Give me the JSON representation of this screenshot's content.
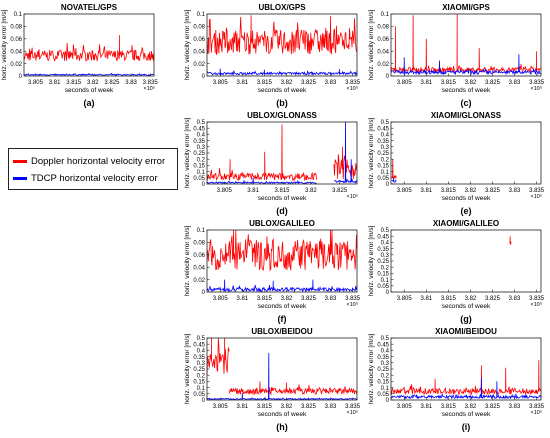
{
  "colors": {
    "doppler": "#ff0000",
    "tdcp": "#0000ff",
    "axis": "#222222",
    "grid": "#dddddd"
  },
  "legend": {
    "doppler_label": "Doppler horizontal velocity error",
    "tdcp_label": "TDCP horizontal velocity error"
  },
  "common": {
    "xlabel": "seconds of week",
    "ylabel": "horiz. velocity error [m/s]",
    "x_multiplier": "×10⁵"
  },
  "chart_data": [
    {
      "panel": "a",
      "type": "line",
      "title": "NOVATEL/GPS",
      "xlim": [
        3.802,
        3.836
      ],
      "ylim": [
        0,
        0.1
      ],
      "xticks": [
        3.805,
        3.81,
        3.815,
        3.82,
        3.825,
        3.83,
        3.835
      ],
      "yticks": [
        0,
        0.02,
        0.04,
        0.06,
        0.08,
        0.1
      ],
      "series": [
        {
          "name": "Doppler horizontal velocity error",
          "color": "red",
          "x_range": [
            3.802,
            3.836
          ],
          "mean": 0.033,
          "spread": 0.009,
          "peaks": [
            [
              3.827,
              0.066
            ]
          ]
        },
        {
          "name": "TDCP horizontal velocity error",
          "color": "blue",
          "x_range": [
            3.802,
            3.836
          ],
          "mean": 0.002,
          "spread": 0.001,
          "peaks": []
        }
      ]
    },
    {
      "panel": "b",
      "type": "line",
      "title": "UBLOX/GPS",
      "xlim": [
        3.802,
        3.836
      ],
      "ylim": [
        0,
        0.1
      ],
      "xticks": [
        3.805,
        3.81,
        3.815,
        3.82,
        3.825,
        3.83,
        3.835
      ],
      "yticks": [
        0,
        0.02,
        0.04,
        0.06,
        0.08,
        0.1
      ],
      "series": [
        {
          "name": "Doppler horizontal velocity error",
          "color": "red",
          "x_range": [
            3.802,
            3.836
          ],
          "mean": 0.055,
          "spread": 0.02,
          "peaks": [
            [
              3.812,
              0.098
            ],
            [
              3.83,
              0.097
            ]
          ]
        },
        {
          "name": "TDCP horizontal velocity error",
          "color": "blue",
          "x_range": [
            3.802,
            3.836
          ],
          "mean": 0.004,
          "spread": 0.002,
          "peaks": [
            [
              3.805,
              0.012
            ],
            [
              3.815,
              0.01
            ],
            [
              3.832,
              0.011
            ]
          ]
        }
      ]
    },
    {
      "panel": "c",
      "type": "line",
      "title": "XIAOMI/GPS",
      "xlim": [
        3.802,
        3.836
      ],
      "ylim": [
        0,
        0.1
      ],
      "xticks": [
        3.805,
        3.81,
        3.815,
        3.82,
        3.825,
        3.83,
        3.835
      ],
      "yticks": [
        0,
        0.02,
        0.04,
        0.06,
        0.08,
        0.1
      ],
      "series": [
        {
          "name": "Doppler horizontal velocity error",
          "color": "red",
          "x_range": [
            3.802,
            3.836
          ],
          "mean": 0.01,
          "spread": 0.004,
          "peaks": [
            [
              3.803,
              0.08
            ],
            [
              3.807,
              0.098
            ],
            [
              3.81,
              0.06
            ],
            [
              3.817,
              0.1
            ],
            [
              3.822,
              0.045
            ],
            [
              3.835,
              0.04
            ]
          ]
        },
        {
          "name": "TDCP horizontal velocity error",
          "color": "blue",
          "x_range": [
            3.802,
            3.836
          ],
          "mean": 0.006,
          "spread": 0.003,
          "peaks": [
            [
              3.805,
              0.03
            ],
            [
              3.813,
              0.025
            ],
            [
              3.831,
              0.035
            ]
          ]
        }
      ]
    },
    {
      "panel": "d",
      "type": "line",
      "title": "UBLOX/GLONASS",
      "xlim": [
        3.802,
        3.828
      ],
      "ylim": [
        0,
        0.5
      ],
      "xticks": [
        3.805,
        3.81,
        3.815,
        3.82,
        3.825
      ],
      "yticks": [
        0,
        0.05,
        0.1,
        0.15,
        0.2,
        0.25,
        0.3,
        0.35,
        0.4,
        0.45,
        0.5
      ],
      "series": [
        {
          "name": "Doppler horizontal velocity error",
          "color": "red",
          "x_range": [
            3.802,
            3.821
          ],
          "mean": 0.06,
          "spread": 0.03,
          "peaks": [
            [
              3.812,
              0.26
            ],
            [
              3.815,
              0.48
            ],
            [
              3.806,
              0.2
            ]
          ]
        },
        {
          "name": "Doppler horizontal velocity error",
          "color": "red",
          "x_range": [
            3.824,
            3.828
          ],
          "mean": 0.12,
          "spread": 0.08,
          "peaks": [
            [
              3.8255,
              0.3
            ]
          ]
        },
        {
          "name": "TDCP horizontal velocity error",
          "color": "blue",
          "x_range": [
            3.802,
            3.821
          ],
          "mean": 0.01,
          "spread": 0.006,
          "peaks": [
            [
              3.81,
              0.05
            ]
          ]
        },
        {
          "name": "TDCP horizontal velocity error",
          "color": "blue",
          "x_range": [
            3.824,
            3.828
          ],
          "mean": 0.02,
          "spread": 0.01,
          "peaks": [
            [
              3.826,
              0.5
            ],
            [
              3.827,
              0.2
            ]
          ]
        }
      ]
    },
    {
      "panel": "e",
      "type": "line",
      "title": "XIAOMI/GLONASS",
      "xlim": [
        3.802,
        3.836
      ],
      "ylim": [
        0,
        0.5
      ],
      "xticks": [
        3.805,
        3.81,
        3.815,
        3.82,
        3.825,
        3.83,
        3.835
      ],
      "yticks": [
        0,
        0.05,
        0.1,
        0.15,
        0.2,
        0.25,
        0.3,
        0.35,
        0.4,
        0.45,
        0.5
      ],
      "series": [
        {
          "name": "Doppler horizontal velocity error",
          "color": "red",
          "x_range": [
            3.8022,
            3.8032
          ],
          "mean": 0.05,
          "spread": 0.02,
          "peaks": [
            [
              3.8024,
              0.2
            ]
          ]
        },
        {
          "name": "TDCP horizontal velocity error",
          "color": "blue",
          "x_range": [
            3.8022,
            3.8032
          ],
          "mean": 0.02,
          "spread": 0.01,
          "peaks": [
            [
              3.8026,
              0.045
            ]
          ]
        }
      ]
    },
    {
      "panel": "f",
      "type": "line",
      "title": "UBLOX/GALILEO",
      "xlim": [
        3.802,
        3.836
      ],
      "ylim": [
        0,
        0.1
      ],
      "xticks": [
        3.805,
        3.81,
        3.815,
        3.82,
        3.825,
        3.83,
        3.835
      ],
      "yticks": [
        0,
        0.02,
        0.04,
        0.06,
        0.08,
        0.1
      ],
      "series": [
        {
          "name": "Doppler horizontal velocity error",
          "color": "red",
          "x_range": [
            3.802,
            3.836
          ],
          "mean": 0.06,
          "spread": 0.025,
          "peaks": [
            [
              3.808,
              0.1
            ],
            [
              3.83,
              0.1
            ]
          ]
        },
        {
          "name": "TDCP horizontal velocity error",
          "color": "blue",
          "x_range": [
            3.802,
            3.836
          ],
          "mean": 0.004,
          "spread": 0.003,
          "peaks": [
            [
              3.806,
              0.02
            ],
            [
              3.817,
              0.018
            ],
            [
              3.826,
              0.02
            ]
          ]
        }
      ]
    },
    {
      "panel": "g",
      "type": "line",
      "title": "XIAOMI/GALILEO",
      "xlim": [
        3.802,
        3.836
      ],
      "ylim": [
        0,
        0.5
      ],
      "xticks": [
        3.805,
        3.81,
        3.815,
        3.82,
        3.825,
        3.83,
        3.835
      ],
      "yticks": [
        0,
        0.05,
        0.1,
        0.15,
        0.2,
        0.25,
        0.3,
        0.35,
        0.4,
        0.45,
        0.5
      ],
      "series": [
        {
          "name": "Doppler horizontal velocity error",
          "color": "red",
          "x_range": [
            3.8289,
            3.8292
          ],
          "mean": 0.4,
          "spread": 0.02,
          "peaks": [
            [
              3.829,
              0.45
            ]
          ]
        }
      ]
    },
    {
      "panel": "h",
      "type": "line",
      "title": "UBLOX/BEIDOU",
      "xlim": [
        3.802,
        3.836
      ],
      "ylim": [
        0,
        0.5
      ],
      "xticks": [
        3.805,
        3.81,
        3.815,
        3.82,
        3.825,
        3.83,
        3.835
      ],
      "yticks": [
        0,
        0.05,
        0.1,
        0.15,
        0.2,
        0.25,
        0.3,
        0.35,
        0.4,
        0.45,
        0.5
      ],
      "series": [
        {
          "name": "Doppler horizontal velocity error",
          "color": "red",
          "x_range": [
            3.802,
            3.807
          ],
          "mean": 0.32,
          "spread": 0.12,
          "peaks": [
            [
              3.803,
              0.5
            ],
            [
              3.806,
              0.5
            ]
          ]
        },
        {
          "name": "Doppler horizontal velocity error",
          "color": "red",
          "x_range": [
            3.807,
            3.836
          ],
          "mean": 0.07,
          "spread": 0.025,
          "peaks": [
            [
              3.814,
              0.15
            ],
            [
              3.82,
              0.14
            ]
          ]
        },
        {
          "name": "TDCP horizontal velocity error",
          "color": "blue",
          "x_range": [
            3.802,
            3.836
          ],
          "mean": 0.008,
          "spread": 0.005,
          "peaks": [
            [
              3.816,
              0.38
            ],
            [
              3.81,
              0.06
            ]
          ]
        }
      ]
    },
    {
      "panel": "i",
      "type": "line",
      "title": "XIAOMI/BEIDOU",
      "xlim": [
        3.802,
        3.836
      ],
      "ylim": [
        0,
        0.5
      ],
      "xticks": [
        3.805,
        3.81,
        3.815,
        3.82,
        3.825,
        3.83,
        3.835
      ],
      "yticks": [
        0,
        0.05,
        0.1,
        0.15,
        0.2,
        0.25,
        0.3,
        0.35,
        0.4,
        0.45,
        0.5
      ],
      "series": [
        {
          "name": "Doppler horizontal velocity error",
          "color": "red",
          "x_range": [
            3.802,
            3.836
          ],
          "mean": 0.07,
          "spread": 0.025,
          "peaks": [
            [
              3.812,
              0.17
            ],
            [
              3.8225,
              0.28
            ],
            [
              3.828,
              0.26
            ],
            [
              3.8355,
              0.32
            ]
          ]
        },
        {
          "name": "TDCP horizontal velocity error",
          "color": "blue",
          "x_range": [
            3.802,
            3.836
          ],
          "mean": 0.025,
          "spread": 0.012,
          "peaks": [
            [
              3.8225,
              0.18
            ],
            [
              3.826,
              0.15
            ]
          ]
        }
      ]
    }
  ]
}
